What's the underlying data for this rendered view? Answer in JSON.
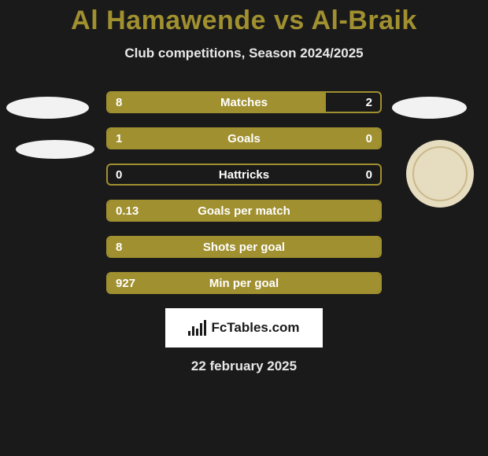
{
  "title": "Al Hamawende vs Al-Braik",
  "subtitle": "Club competitions, Season 2024/2025",
  "date": "22 february 2025",
  "brand": "FcTables.com",
  "colors": {
    "accent": "#a09030",
    "bar_fill": "#a09030",
    "bar_border": "#a09030",
    "text_on_bar": "#ffffff",
    "background": "#1a1a1a",
    "box_bg": "#ffffff"
  },
  "rows": [
    {
      "label": "Matches",
      "left": "8",
      "right": "2",
      "fill_left_pct": 80,
      "fill_right_pct": 20,
      "mode": "split"
    },
    {
      "label": "Goals",
      "left": "1",
      "right": "0",
      "fill_left_pct": 100,
      "fill_right_pct": 0,
      "mode": "full"
    },
    {
      "label": "Hattricks",
      "left": "0",
      "right": "0",
      "fill_left_pct": 0,
      "fill_right_pct": 0,
      "mode": "empty"
    },
    {
      "label": "Goals per match",
      "left": "0.13",
      "right": "",
      "fill_left_pct": 100,
      "fill_right_pct": 0,
      "mode": "full"
    },
    {
      "label": "Shots per goal",
      "left": "8",
      "right": "",
      "fill_left_pct": 100,
      "fill_right_pct": 0,
      "mode": "full"
    },
    {
      "label": "Min per goal",
      "left": "927",
      "right": "",
      "fill_left_pct": 100,
      "fill_right_pct": 0,
      "mode": "full"
    }
  ]
}
